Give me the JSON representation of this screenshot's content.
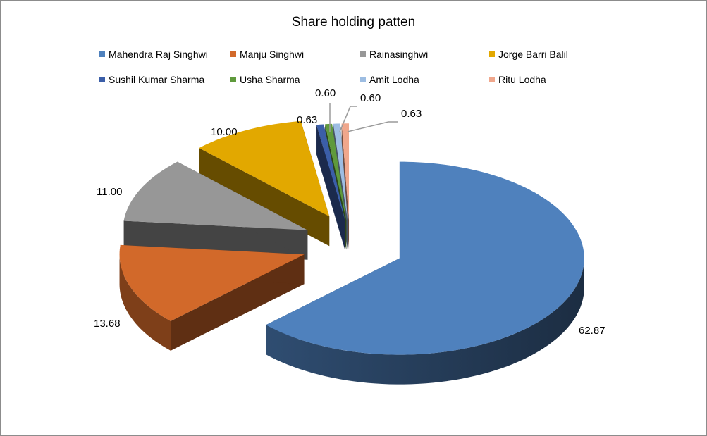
{
  "chart_data": {
    "type": "pie",
    "variant": "3d-exploded",
    "title": "Share holding patten",
    "legend_position": "top",
    "start": "12 o'clock, clockwise",
    "series": [
      {
        "name": "Mahendra Raj Singhwi",
        "value": 62.87,
        "label": "62.87",
        "color": "#4f81bd"
      },
      {
        "name": "Manju Singhwi",
        "value": 13.68,
        "label": "13.68",
        "color": "#d2692a"
      },
      {
        "name": "Rainasinghwi",
        "value": 11.0,
        "label": "11.00",
        "color": "#979797"
      },
      {
        "name": "Jorge Barri Balil",
        "value": 10.0,
        "label": "10.00",
        "color": "#e2a800"
      },
      {
        "name": "Sushil Kumar Sharma",
        "value": 0.63,
        "label": "0.63",
        "color": "#3b5ea8"
      },
      {
        "name": "Usha Sharma",
        "value": 0.6,
        "label": "0.60",
        "color": "#5f9a3c"
      },
      {
        "name": "Amit Lodha",
        "value": 0.6,
        "label": "0.60",
        "color": "#9dbde2"
      },
      {
        "name": "Ritu Lodha",
        "value": 0.63,
        "label": "0.63",
        "color": "#f0a78c"
      }
    ]
  }
}
